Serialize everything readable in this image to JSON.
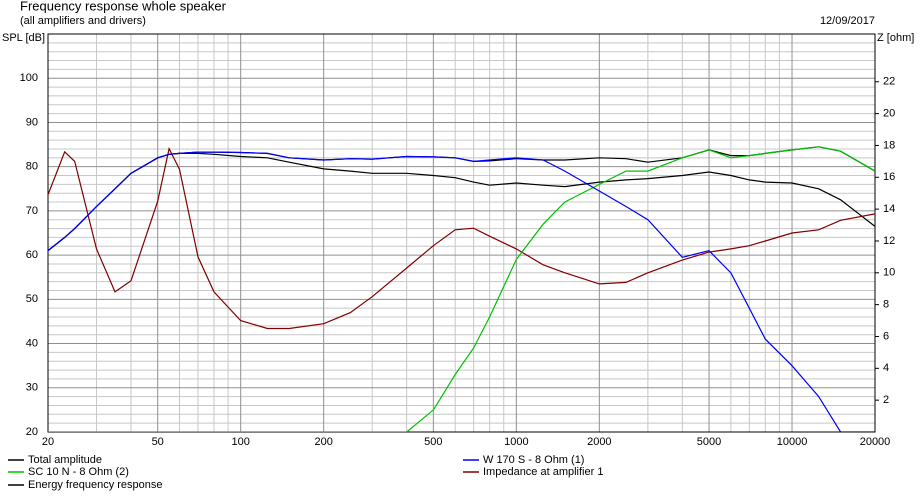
{
  "chart_data": {
    "type": "line",
    "title": "Frequency response whole speaker",
    "subtitle": "(all amplifiers and drivers)",
    "date": "12/09/2017",
    "ylabel": "SPL [dB]",
    "y2label": "Z [ohm]",
    "xscale": "log",
    "x": [
      20,
      23,
      25,
      30,
      35,
      40,
      50,
      55,
      60,
      70,
      80,
      100,
      125,
      150,
      200,
      250,
      300,
      400,
      500,
      600,
      700,
      800,
      1000,
      1250,
      1500,
      2000,
      2500,
      3000,
      4000,
      5000,
      6000,
      7000,
      8000,
      10000,
      12500,
      15000,
      20000
    ],
    "xlim": [
      20,
      20000
    ],
    "xticks": [
      20,
      50,
      100,
      200,
      500,
      1000,
      2000,
      5000,
      10000,
      20000
    ],
    "xminorticks": [
      30,
      40,
      60,
      70,
      80,
      90,
      300,
      400,
      600,
      700,
      800,
      900,
      3000,
      4000,
      6000,
      7000,
      8000,
      9000
    ],
    "ylim": [
      20,
      110
    ],
    "yticks": [
      20,
      30,
      40,
      50,
      60,
      70,
      80,
      90,
      100
    ],
    "yminorticks": [
      22,
      24,
      26,
      28,
      32,
      34,
      36,
      38,
      42,
      44,
      46,
      48,
      52,
      54,
      56,
      58,
      62,
      64,
      66,
      68,
      72,
      74,
      76,
      78,
      82,
      84,
      86,
      88,
      92,
      94,
      96,
      98,
      102,
      104,
      106,
      108
    ],
    "y2lim": [
      0,
      25
    ],
    "y2ticks": [
      2,
      4,
      6,
      8,
      10,
      12,
      14,
      16,
      18,
      20,
      22
    ],
    "grid": true,
    "legend": "bottom",
    "series": [
      {
        "name": "Total amplitude",
        "color": "#000000",
        "values": [
          61,
          64,
          66,
          71,
          75,
          78.5,
          82,
          82.8,
          83,
          83.3,
          83.3,
          83.2,
          83,
          82,
          81.5,
          81.8,
          81.7,
          82.3,
          82.2,
          82,
          81.2,
          81.3,
          81.8,
          81.5,
          81.5,
          82,
          81.8,
          81,
          82,
          83.8,
          82.5,
          82.5,
          83,
          83.8,
          84.5,
          83.5,
          79
        ]
      },
      {
        "name": "W 170 S - 8 Ohm (1)",
        "color": "#0000ff",
        "values": [
          61,
          64,
          66,
          71,
          75,
          78.5,
          82,
          82.8,
          83,
          83.3,
          83.3,
          83.2,
          83,
          82,
          81.5,
          81.8,
          81.7,
          82.3,
          82.2,
          82,
          81.2,
          81.5,
          82,
          81.5,
          79,
          74.5,
          71,
          68,
          59.5,
          61,
          56,
          48,
          41,
          35,
          28,
          20,
          20
        ]
      },
      {
        "name": "SC 10 N - 8 Ohm (2)",
        "color": "#00c000",
        "values": [
          20,
          20,
          20,
          20,
          20,
          20,
          20,
          20,
          20,
          20,
          20,
          20,
          20,
          20,
          20,
          20,
          20,
          20,
          25,
          33,
          39,
          46,
          59,
          67,
          72,
          76,
          79,
          79,
          82,
          83.8,
          82,
          82.5,
          83,
          83.8,
          84.5,
          83.5,
          79
        ]
      },
      {
        "name": "Impedance at amplifier 1",
        "color": "#800000",
        "axis": "y2",
        "values": [
          14.9,
          17.6,
          17,
          11.5,
          8.8,
          9.5,
          14.5,
          17.8,
          16.5,
          11,
          8.8,
          7,
          6.5,
          6.5,
          6.8,
          7.5,
          8.5,
          10.3,
          11.7,
          12.7,
          12.8,
          12.3,
          11.5,
          10.5,
          10,
          9.3,
          9.4,
          10,
          10.8,
          11.3,
          11.5,
          11.7,
          12,
          12.5,
          12.7,
          13.3,
          13.7
        ]
      },
      {
        "name": "Energy frequency response",
        "color": "#000000",
        "values": [
          61,
          64,
          66,
          71,
          75,
          78.5,
          82,
          82.8,
          83,
          83,
          82.8,
          82.3,
          82,
          81,
          79.5,
          79,
          78.5,
          78.5,
          78,
          77.5,
          76.5,
          75.8,
          76.3,
          75.8,
          75.5,
          76.5,
          77,
          77.3,
          78,
          78.8,
          78,
          77,
          76.5,
          76.3,
          75,
          72.5,
          66.5
        ]
      }
    ]
  }
}
